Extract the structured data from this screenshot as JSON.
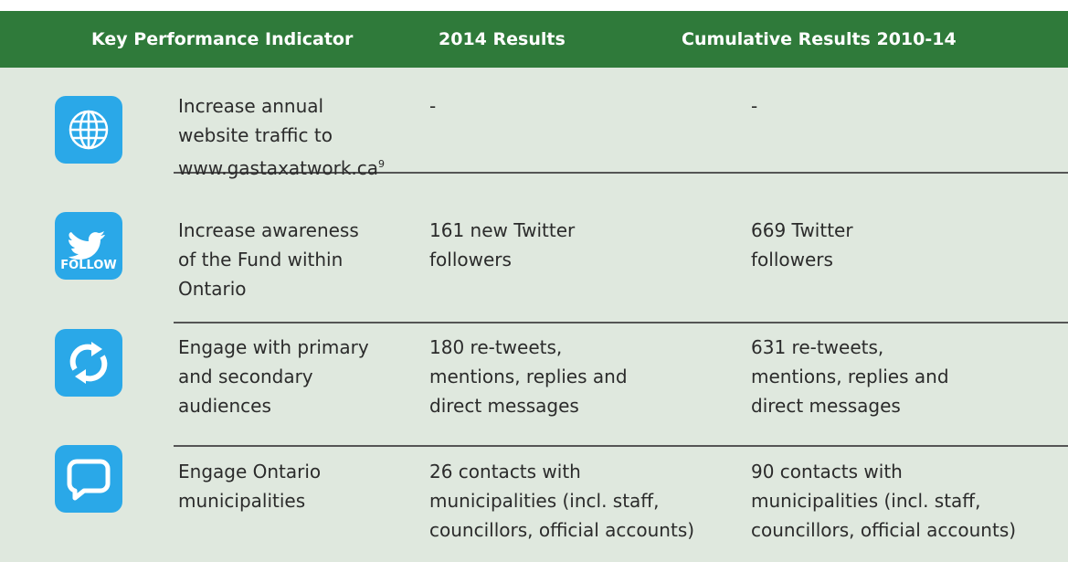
{
  "table": {
    "header": [
      "Key Performance Indicator",
      "2014 Results",
      "Cumulative Results 2010-14"
    ],
    "rows": [
      {
        "indicator": [
          "Increase annual",
          "website traffic to",
          "www.gastaxatwork.ca"
        ],
        "footnote": "9",
        "results_2014": [
          "-"
        ],
        "cumulative": [
          "-"
        ]
      },
      {
        "icon_label": "FOLLOW",
        "indicator": [
          "Increase awareness",
          "of the Fund within",
          "Ontario"
        ],
        "results_2014": [
          "161 new Twitter",
          "followers"
        ],
        "cumulative": [
          "669 Twitter",
          "followers"
        ]
      },
      {
        "indicator": [
          "Engage with primary",
          "and secondary",
          "audiences"
        ],
        "results_2014": [
          "180 re-tweets,",
          "mentions, replies and",
          "direct messages"
        ],
        "cumulative": [
          "631 re-tweets,",
          "mentions, replies and",
          "direct messages"
        ]
      },
      {
        "indicator": [
          "Engage Ontario",
          "municipalities"
        ],
        "results_2014": [
          "26 contacts with",
          "municipalities (incl. staff,",
          "councillors, official accounts)"
        ],
        "cumulative": [
          "90 contacts with",
          "municipalities (incl. staff,",
          "councillors, official accounts)"
        ]
      }
    ]
  }
}
